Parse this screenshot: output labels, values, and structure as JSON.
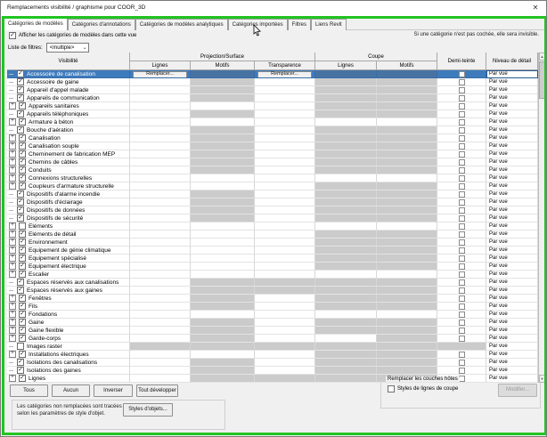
{
  "window": {
    "title": "Remplacements visibilité / graphisme pour COOR_3D"
  },
  "icons": {
    "close": "✕",
    "check": "✓",
    "plus": "+",
    "combo_arrow": "⌄",
    "scroll_up": "▲",
    "scroll_down": "▼"
  },
  "tabs": [
    {
      "label": "Catégories de modèles",
      "active": true
    },
    {
      "label": "Catégories d'annotations",
      "active": false
    },
    {
      "label": "Catégories de modèles analytiques",
      "active": false
    },
    {
      "label": "Catégories importées",
      "active": false
    },
    {
      "label": "Filtres",
      "active": false
    },
    {
      "label": "Liens Revit",
      "active": false
    }
  ],
  "controls": {
    "show_categories_label": "Afficher les catégories de modèles dans cette vue",
    "show_categories_checked": true,
    "invisible_note": "Si une catégorie n'est pas cochée, elle sera invisible.",
    "filter_list_label": "Liste de filtres:",
    "filter_list_value": "<multiple>"
  },
  "table": {
    "headers": {
      "visibility": "Visibilité",
      "projection_surface": "Projection/Surface",
      "coupe": "Coupe",
      "lignes": "Lignes",
      "motifs": "Motifs",
      "transparence": "Transparence",
      "demi_teinte": "Demi-teinte",
      "niveau_detail": "Niveau de détail"
    },
    "override_button_label": "Remplacer...",
    "detail_value": "Par vue",
    "row_format": "[label, has_expander(0/1), checked(0/1), cells[lignes,motifs,transparence,coupe_lignes,coupe_motifs] w=normal g=disabled btn=override-button sg=selected-disabled, halftone(cb=checkbox g=disabled), selected(0/1)]",
    "rows": [
      [
        "Accessoire de canalisation",
        0,
        1,
        [
          "btn",
          "sg",
          "btn",
          "sg",
          "sg"
        ],
        "cb",
        1
      ],
      [
        "Accessoire de gaine",
        0,
        1,
        [
          "w",
          "g",
          "w",
          "g",
          "g"
        ],
        "cb",
        0
      ],
      [
        "Appareil d'appel malade",
        0,
        1,
        [
          "w",
          "g",
          "w",
          "g",
          "g"
        ],
        "cb",
        0
      ],
      [
        "Appareils de communication",
        0,
        1,
        [
          "w",
          "g",
          "w",
          "g",
          "g"
        ],
        "cb",
        0
      ],
      [
        "Appareils sanitaires",
        1,
        1,
        [
          "w",
          "w",
          "w",
          "g",
          "g"
        ],
        "cb",
        0
      ],
      [
        "Appareils téléphoniques",
        0,
        1,
        [
          "w",
          "g",
          "w",
          "g",
          "g"
        ],
        "cb",
        0
      ],
      [
        "Armature à béton",
        1,
        1,
        [
          "w",
          "w",
          "w",
          "w",
          "w"
        ],
        "cb",
        0
      ],
      [
        "Bouche d'aération",
        0,
        1,
        [
          "w",
          "g",
          "w",
          "g",
          "g"
        ],
        "cb",
        0
      ],
      [
        "Canalisation",
        1,
        1,
        [
          "w",
          "g",
          "w",
          "g",
          "g"
        ],
        "cb",
        0
      ],
      [
        "Canalisation souple",
        1,
        1,
        [
          "w",
          "g",
          "w",
          "g",
          "g"
        ],
        "cb",
        0
      ],
      [
        "Cheminement de fabrication MEP",
        1,
        1,
        [
          "w",
          "g",
          "w",
          "g",
          "g"
        ],
        "cb",
        0
      ],
      [
        "Chemins de câbles",
        1,
        1,
        [
          "w",
          "g",
          "w",
          "g",
          "g"
        ],
        "cb",
        0
      ],
      [
        "Conduits",
        1,
        1,
        [
          "w",
          "g",
          "w",
          "g",
          "g"
        ],
        "cb",
        0
      ],
      [
        "Connexions structurelles",
        1,
        1,
        [
          "w",
          "w",
          "w",
          "w",
          "w"
        ],
        "cb",
        0
      ],
      [
        "Coupleurs d'armature structurelle",
        1,
        1,
        [
          "w",
          "w",
          "w",
          "g",
          "g"
        ],
        "cb",
        0
      ],
      [
        "Dispositifs d'alarme incendie",
        0,
        1,
        [
          "w",
          "g",
          "w",
          "g",
          "g"
        ],
        "cb",
        0
      ],
      [
        "Dispositifs d'éclairage",
        0,
        1,
        [
          "w",
          "g",
          "w",
          "g",
          "g"
        ],
        "cb",
        0
      ],
      [
        "Dispositifs de données",
        0,
        1,
        [
          "w",
          "g",
          "w",
          "g",
          "g"
        ],
        "cb",
        0
      ],
      [
        "Dispositifs de sécurité",
        0,
        1,
        [
          "w",
          "g",
          "w",
          "g",
          "g"
        ],
        "cb",
        0
      ],
      [
        "Eléments",
        1,
        0,
        [
          "w",
          "w",
          "w",
          "w",
          "w"
        ],
        "cb",
        0
      ],
      [
        "Eléments de détail",
        1,
        1,
        [
          "w",
          "w",
          "w",
          "g",
          "g"
        ],
        "cb",
        0
      ],
      [
        "Environnement",
        1,
        1,
        [
          "w",
          "w",
          "w",
          "g",
          "g"
        ],
        "cb",
        0
      ],
      [
        "Equipement de génie climatique",
        1,
        1,
        [
          "w",
          "w",
          "w",
          "g",
          "g"
        ],
        "cb",
        0
      ],
      [
        "Equipement spécialisé",
        1,
        1,
        [
          "w",
          "w",
          "w",
          "g",
          "g"
        ],
        "cb",
        0
      ],
      [
        "Equipement électrique",
        1,
        1,
        [
          "w",
          "w",
          "w",
          "g",
          "g"
        ],
        "cb",
        0
      ],
      [
        "Escalier",
        1,
        1,
        [
          "w",
          "w",
          "w",
          "w",
          "w"
        ],
        "cb",
        0
      ],
      [
        "Espaces réservés aux canalisations",
        0,
        1,
        [
          "w",
          "g",
          "g",
          "g",
          "g"
        ],
        "cb",
        0
      ],
      [
        "Espaces réservés aux gaines",
        0,
        1,
        [
          "w",
          "g",
          "g",
          "g",
          "g"
        ],
        "cb",
        0
      ],
      [
        "Fenêtres",
        1,
        1,
        [
          "w",
          "g",
          "w",
          "g",
          "g"
        ],
        "cb",
        0
      ],
      [
        "Fils",
        1,
        1,
        [
          "w",
          "g",
          "w",
          "g",
          "g"
        ],
        "cb",
        0
      ],
      [
        "Fondations",
        1,
        1,
        [
          "w",
          "w",
          "w",
          "w",
          "w"
        ],
        "cb",
        0
      ],
      [
        "Gaine",
        1,
        1,
        [
          "w",
          "g",
          "w",
          "g",
          "g"
        ],
        "cb",
        0
      ],
      [
        "Gaine flexible",
        1,
        1,
        [
          "w",
          "g",
          "w",
          "g",
          "g"
        ],
        "cb",
        0
      ],
      [
        "Garde-corps",
        1,
        1,
        [
          "w",
          "g",
          "w",
          "w",
          "g"
        ],
        "cb",
        0
      ],
      [
        "Images raster",
        0,
        0,
        [
          "g",
          "g",
          "g",
          "g",
          "g"
        ],
        "g",
        0
      ],
      [
        "Installations électriques",
        1,
        1,
        [
          "w",
          "w",
          "w",
          "g",
          "g"
        ],
        "cb",
        0
      ],
      [
        "Isolations des canalisations",
        0,
        1,
        [
          "w",
          "g",
          "w",
          "g",
          "g"
        ],
        "cb",
        0
      ],
      [
        "Isolations des gaines",
        0,
        1,
        [
          "w",
          "g",
          "w",
          "g",
          "g"
        ],
        "cb",
        0
      ],
      [
        "Lignes",
        1,
        1,
        [
          "w",
          "g",
          "g",
          "g",
          "g"
        ],
        "cb",
        0
      ]
    ]
  },
  "actions": {
    "all": "Tous",
    "none": "Aucun",
    "invert": "Inverser",
    "expand_all": "Tout développer"
  },
  "object_styles": {
    "text_line1": "Les catégories non remplacées sont tracées",
    "text_line2": "selon les paramètres de style d'objet.",
    "button": "Styles d'objets..."
  },
  "host_layers": {
    "group_label": "Remplacer les couches hôtes",
    "checkbox_label": "Styles de lignes de coupe",
    "checkbox_checked": false,
    "button": "Modifier..."
  },
  "colors": {
    "selection_blue": "#3e7bbd",
    "disabled_cell": "#d2d2d2",
    "annotation_green": "#21c421",
    "dialog_bg": "#f0f0f0"
  }
}
